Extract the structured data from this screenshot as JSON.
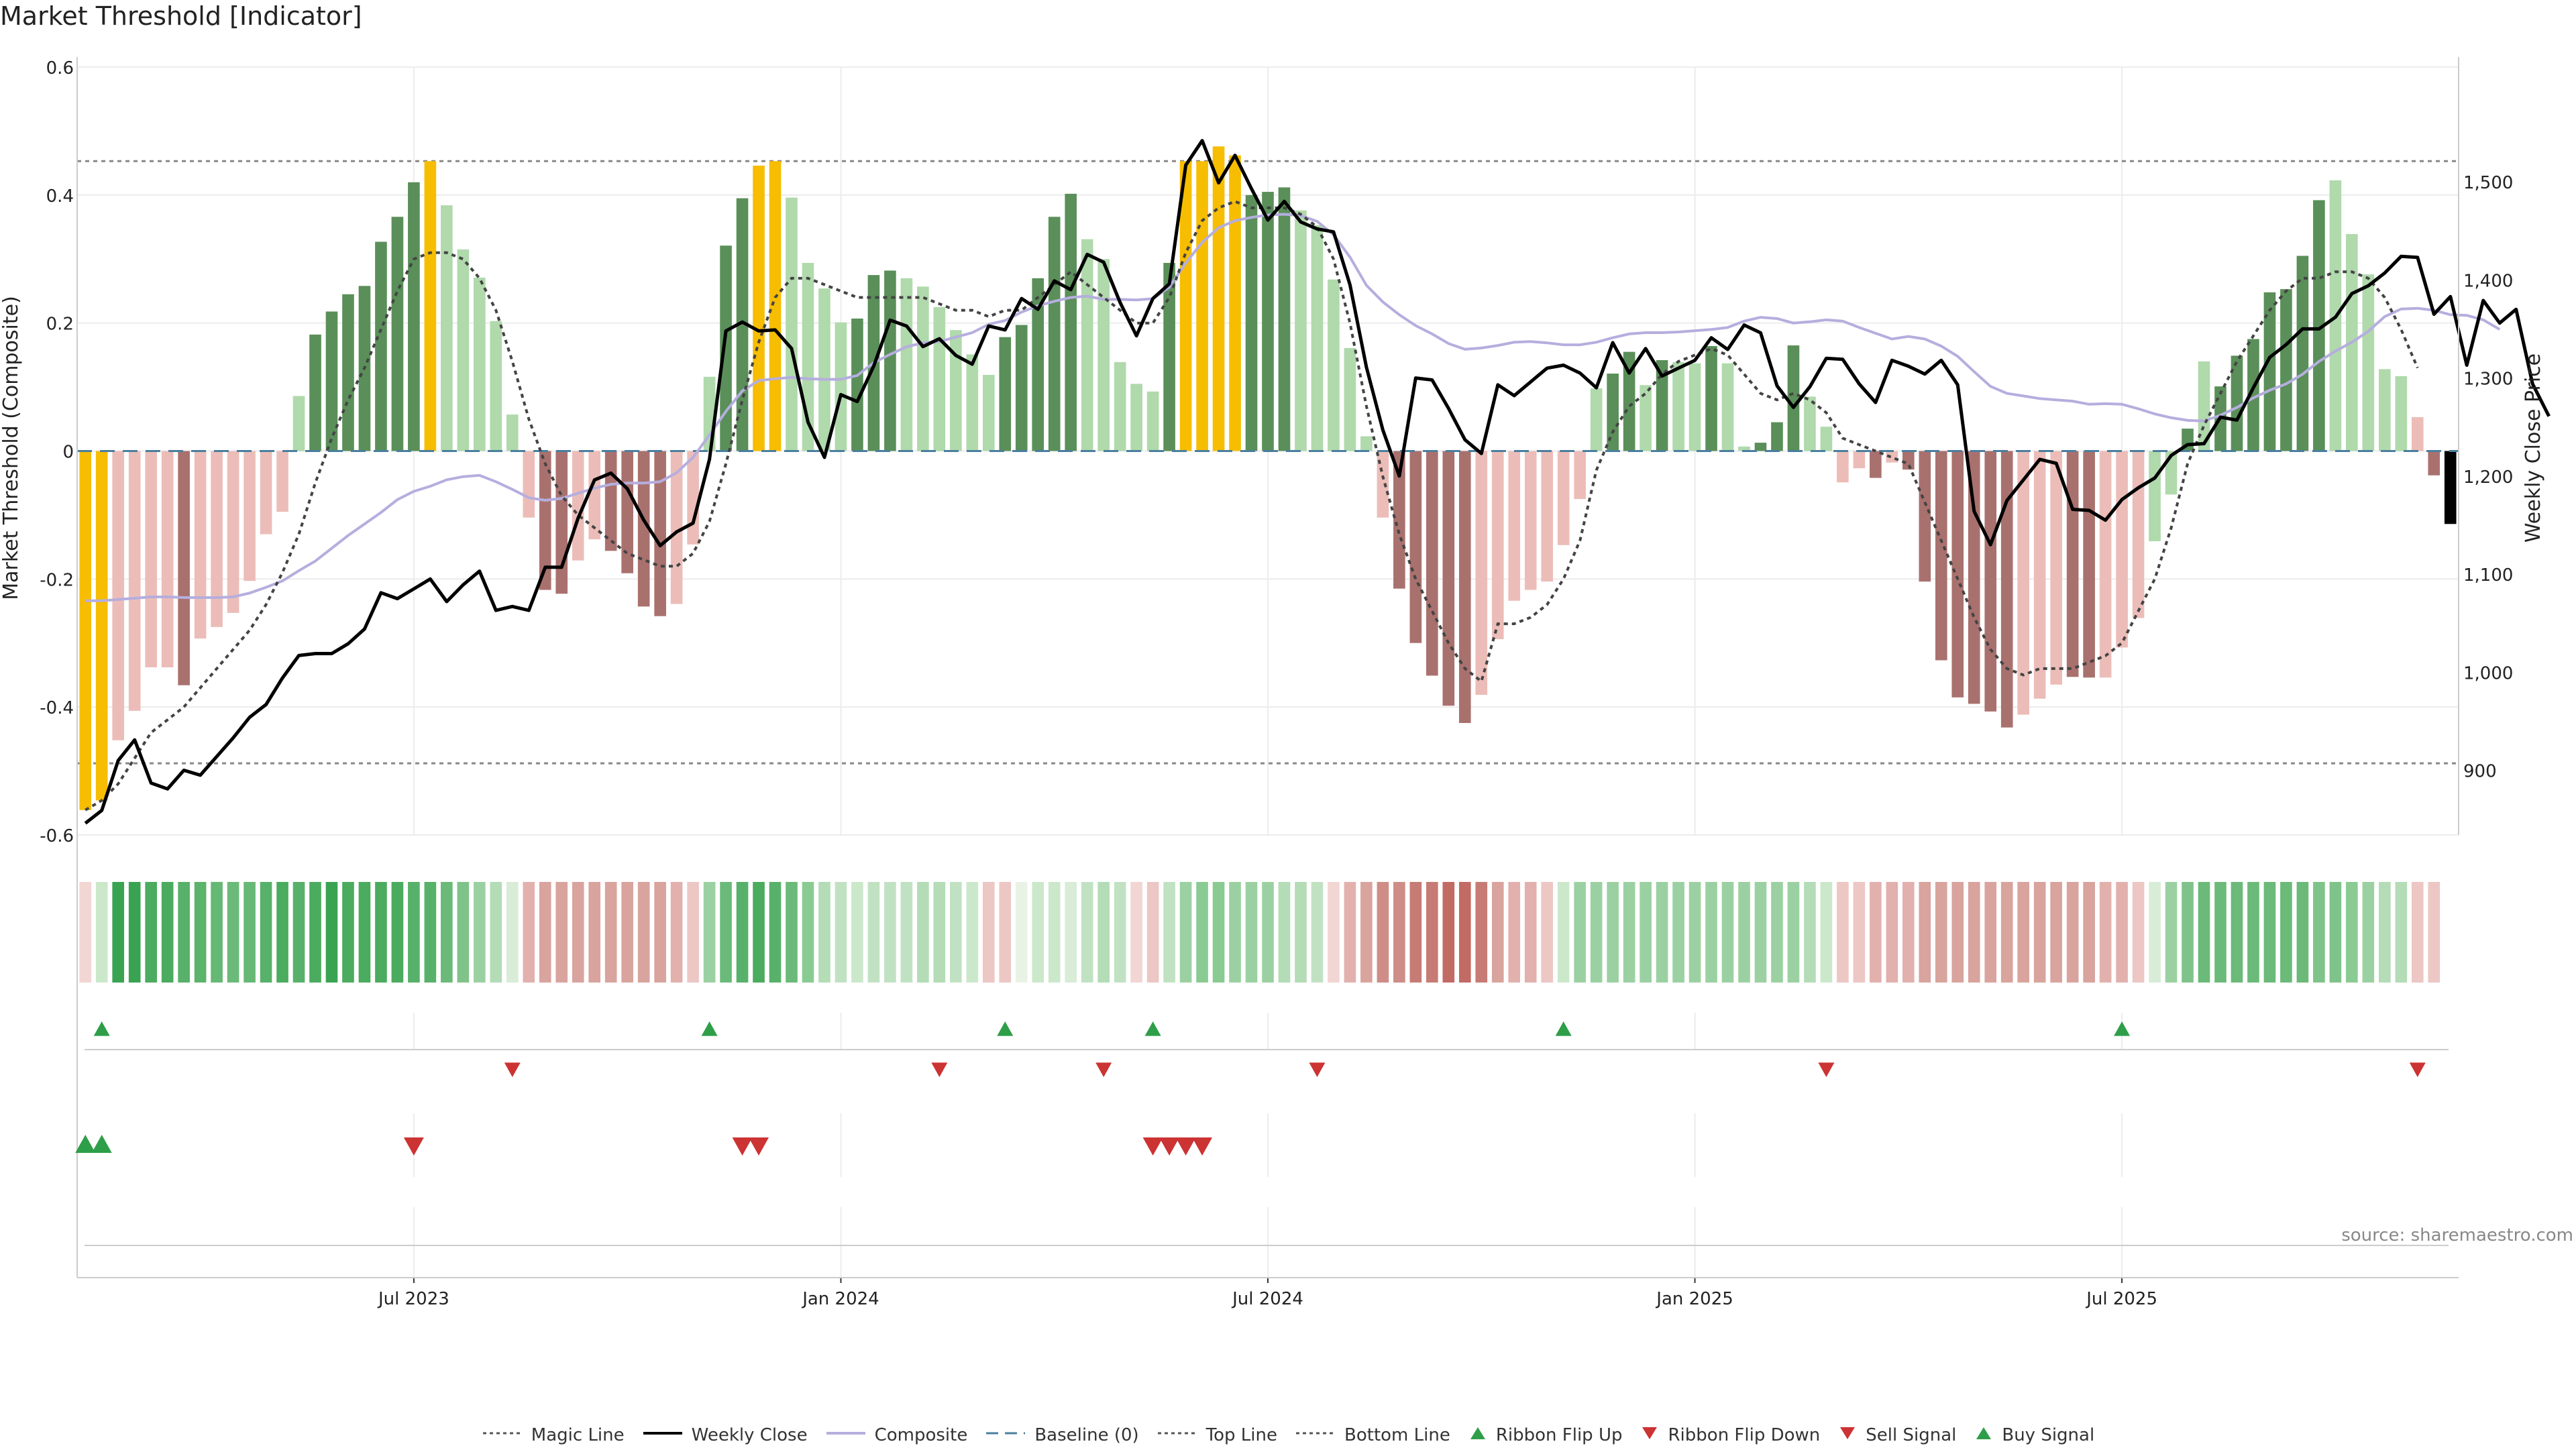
{
  "title": "Market Threshold [Indicator]",
  "source": "source: sharemaestro.com",
  "colors": {
    "gold": "#f7bd00",
    "dark_green": "#5a8f59",
    "light_green": "#b0d9ac",
    "dark_red": "#a9716e",
    "light_red": "#ecbdb8",
    "price": "#000000",
    "composite": "#b5aede",
    "magic": "#444444",
    "baseline": "#4a7f9e",
    "threshold": "#888888",
    "up": "#2e9e48",
    "down": "#cc3333"
  },
  "chart_data": {
    "type": "bar",
    "title": "Market Threshold [Indicator]",
    "ylabel": "Market Threshold (Composite)",
    "y2label": "Weekly Close Price",
    "ylim": [
      -0.6,
      0.6
    ],
    "y2lim": [
      834,
      1617
    ],
    "yticks": [
      "0.6",
      "0.4",
      "0.2",
      "0",
      "-0.2",
      "-0.4",
      "-0.6"
    ],
    "y2ticks": [
      "1,500",
      "1,400",
      "1,300",
      "1,200",
      "1,100",
      "1,000",
      "900"
    ],
    "xticks": [
      "Jul 2023",
      "Jan 2024",
      "Jul 2024",
      "Jan 2025",
      "Jul 2025"
    ],
    "xtick_index": [
      20,
      46,
      72,
      98,
      124
    ],
    "top_line": 0.453,
    "bottom_line": -0.488,
    "baseline": 0,
    "composite": [
      -0.561,
      -0.546,
      -0.452,
      -0.406,
      -0.338,
      -0.338,
      -0.366,
      -0.293,
      -0.275,
      -0.253,
      -0.203,
      -0.13,
      -0.095,
      0.086,
      0.182,
      0.218,
      0.245,
      0.258,
      0.327,
      0.366,
      0.42,
      0.453,
      0.384,
      0.315,
      0.271,
      0.203,
      0.057,
      -0.104,
      -0.217,
      -0.223,
      -0.171,
      -0.138,
      -0.156,
      -0.191,
      -0.243,
      -0.258,
      -0.239,
      -0.146,
      0.116,
      0.321,
      0.395,
      0.446,
      0.453,
      0.396,
      0.294,
      0.254,
      0.201,
      0.207,
      0.275,
      0.282,
      0.27,
      0.257,
      0.225,
      0.189,
      0.151,
      0.119,
      0.178,
      0.197,
      0.27,
      0.366,
      0.402,
      0.331,
      0.3,
      0.139,
      0.105,
      0.093,
      0.294,
      0.453,
      0.453,
      0.476,
      0.462,
      0.4,
      0.405,
      0.412,
      0.376,
      0.353,
      0.268,
      0.161,
      0.023,
      -0.104,
      -0.215,
      -0.3,
      -0.351,
      -0.398,
      -0.425,
      -0.381,
      -0.294,
      -0.234,
      -0.217,
      -0.204,
      -0.147,
      -0.075,
      0.098,
      0.121,
      0.155,
      0.103,
      0.142,
      0.139,
      0.137,
      0.164,
      0.137,
      0.007,
      0.013,
      0.045,
      0.165,
      0.085,
      0.038,
      -0.049,
      -0.027,
      -0.042,
      -0.018,
      -0.029,
      -0.204,
      -0.327,
      -0.385,
      -0.395,
      -0.407,
      -0.432,
      -0.412,
      -0.387,
      -0.365,
      -0.353,
      -0.354,
      -0.354,
      -0.307,
      -0.261,
      -0.141,
      -0.068,
      0.035,
      0.14,
      0.101,
      0.149,
      0.175,
      0.248,
      0.253,
      0.305,
      0.392,
      0.423,
      0.339,
      0.276,
      0.128,
      0.117,
      0.053,
      -0.038,
      -0.114
    ],
    "bar_colors": [
      "gold",
      "gold",
      "light_red",
      "light_red",
      "light_red",
      "light_red",
      "dark_red",
      "light_red",
      "light_red",
      "light_red",
      "light_red",
      "light_red",
      "light_red",
      "light_green",
      "dark_green",
      "dark_green",
      "dark_green",
      "dark_green",
      "dark_green",
      "dark_green",
      "dark_green",
      "gold",
      "light_green",
      "light_green",
      "light_green",
      "light_green",
      "light_green",
      "light_red",
      "dark_red",
      "dark_red",
      "light_red",
      "light_red",
      "dark_red",
      "dark_red",
      "dark_red",
      "dark_red",
      "light_red",
      "light_red",
      "light_green",
      "dark_green",
      "dark_green",
      "gold",
      "gold",
      "light_green",
      "light_green",
      "light_green",
      "light_green",
      "dark_green",
      "dark_green",
      "dark_green",
      "light_green",
      "light_green",
      "light_green",
      "light_green",
      "light_green",
      "light_green",
      "dark_green",
      "dark_green",
      "dark_green",
      "dark_green",
      "dark_green",
      "light_green",
      "light_green",
      "light_green",
      "light_green",
      "light_green",
      "dark_green",
      "gold",
      "gold",
      "gold",
      "gold",
      "dark_green",
      "dark_green",
      "dark_green",
      "light_green",
      "light_green",
      "light_green",
      "light_green",
      "light_green",
      "light_red",
      "dark_red",
      "dark_red",
      "dark_red",
      "dark_red",
      "dark_red",
      "light_red",
      "light_red",
      "light_red",
      "light_red",
      "light_red",
      "light_red",
      "light_red",
      "light_green",
      "dark_green",
      "dark_green",
      "light_green",
      "dark_green",
      "light_green",
      "light_green",
      "dark_green",
      "light_green",
      "light_green",
      "dark_green",
      "dark_green",
      "dark_green",
      "light_green",
      "light_green",
      "light_red",
      "light_red",
      "dark_red",
      "light_red",
      "dark_red",
      "dark_red",
      "dark_red",
      "dark_red",
      "dark_red",
      "dark_red",
      "dark_red",
      "light_red",
      "light_red",
      "light_red",
      "dark_red",
      "dark_red",
      "light_red",
      "light_red",
      "light_red",
      "light_green",
      "light_green",
      "dark_green",
      "light_green",
      "dark_green",
      "dark_green",
      "dark_green",
      "dark_green",
      "dark_green",
      "dark_green",
      "dark_green",
      "light_green",
      "light_green",
      "light_green",
      "light_green",
      "light_green",
      "light_red",
      "dark_red"
    ],
    "magic_line": [
      -0.561,
      -0.546,
      -0.52,
      -0.48,
      -0.44,
      -0.42,
      -0.4,
      -0.37,
      -0.34,
      -0.31,
      -0.28,
      -0.24,
      -0.19,
      -0.13,
      -0.05,
      0.02,
      0.08,
      0.13,
      0.19,
      0.25,
      0.3,
      0.31,
      0.31,
      0.3,
      0.27,
      0.22,
      0.14,
      0.05,
      -0.02,
      -0.07,
      -0.1,
      -0.12,
      -0.14,
      -0.16,
      -0.17,
      -0.18,
      -0.18,
      -0.16,
      -0.11,
      -0.02,
      0.08,
      0.17,
      0.24,
      0.27,
      0.27,
      0.26,
      0.25,
      0.24,
      0.24,
      0.24,
      0.24,
      0.24,
      0.23,
      0.22,
      0.22,
      0.21,
      0.22,
      0.22,
      0.24,
      0.26,
      0.28,
      0.26,
      0.24,
      0.22,
      0.2,
      0.2,
      0.24,
      0.31,
      0.36,
      0.38,
      0.39,
      0.38,
      0.38,
      0.38,
      0.37,
      0.35,
      0.3,
      0.2,
      0.07,
      -0.04,
      -0.13,
      -0.2,
      -0.25,
      -0.3,
      -0.34,
      -0.36,
      -0.27,
      -0.27,
      -0.26,
      -0.24,
      -0.2,
      -0.14,
      -0.03,
      0.03,
      0.07,
      0.09,
      0.12,
      0.14,
      0.15,
      0.16,
      0.15,
      0.12,
      0.09,
      0.08,
      0.09,
      0.08,
      0.06,
      0.02,
      0.01,
      0.0,
      -0.01,
      -0.02,
      -0.08,
      -0.14,
      -0.2,
      -0.26,
      -0.31,
      -0.34,
      -0.35,
      -0.34,
      -0.34,
      -0.34,
      -0.33,
      -0.32,
      -0.3,
      -0.25,
      -0.2,
      -0.12,
      -0.02,
      0.04,
      0.09,
      0.14,
      0.18,
      0.22,
      0.25,
      0.27,
      0.27,
      0.28,
      0.28,
      0.27,
      0.24,
      0.19,
      0.13
    ],
    "composite_line": [
      -0.234,
      -0.234,
      -0.232,
      -0.23,
      -0.228,
      -0.228,
      -0.229,
      -0.229,
      -0.229,
      -0.228,
      -0.222,
      -0.213,
      -0.203,
      -0.187,
      -0.172,
      -0.152,
      -0.132,
      -0.114,
      -0.096,
      -0.076,
      -0.063,
      -0.055,
      -0.045,
      -0.04,
      -0.038,
      -0.048,
      -0.06,
      -0.073,
      -0.077,
      -0.074,
      -0.066,
      -0.058,
      -0.052,
      -0.05,
      -0.05,
      -0.048,
      -0.034,
      -0.01,
      0.025,
      0.062,
      0.094,
      0.11,
      0.113,
      0.115,
      0.113,
      0.112,
      0.112,
      0.118,
      0.138,
      0.151,
      0.163,
      0.169,
      0.171,
      0.178,
      0.185,
      0.198,
      0.204,
      0.217,
      0.227,
      0.234,
      0.24,
      0.242,
      0.237,
      0.237,
      0.236,
      0.238,
      0.256,
      0.294,
      0.326,
      0.349,
      0.36,
      0.365,
      0.369,
      0.37,
      0.368,
      0.359,
      0.338,
      0.303,
      0.259,
      0.233,
      0.213,
      0.196,
      0.183,
      0.168,
      0.159,
      0.161,
      0.165,
      0.17,
      0.171,
      0.169,
      0.166,
      0.166,
      0.17,
      0.177,
      0.183,
      0.185,
      0.185,
      0.186,
      0.188,
      0.19,
      0.193,
      0.203,
      0.209,
      0.207,
      0.2,
      0.202,
      0.205,
      0.203,
      0.193,
      0.184,
      0.175,
      0.179,
      0.175,
      0.164,
      0.148,
      0.124,
      0.101,
      0.09,
      0.086,
      0.082,
      0.08,
      0.078,
      0.073,
      0.074,
      0.073,
      0.066,
      0.058,
      0.052,
      0.048,
      0.047,
      0.056,
      0.068,
      0.083,
      0.095,
      0.105,
      0.12,
      0.14,
      0.156,
      0.17,
      0.187,
      0.21,
      0.222,
      0.223,
      0.22,
      0.213,
      0.212,
      0.205,
      0.19
    ],
    "weekly_close": [
      846,
      859,
      910,
      931,
      887,
      881,
      900,
      895,
      914,
      933,
      954,
      967,
      994,
      1017,
      1019,
      1019,
      1029,
      1044,
      1081,
      1075,
      1085,
      1095,
      1072,
      1089,
      1103,
      1063,
      1067,
      1063,
      1107,
      1107,
      1157,
      1196,
      1203,
      1187,
      1155,
      1129,
      1143,
      1152,
      1217,
      1348,
      1357,
      1348,
      1349,
      1330,
      1255,
      1219,
      1283,
      1276,
      1312,
      1359,
      1353,
      1332,
      1340,
      1323,
      1314,
      1353,
      1349,
      1381,
      1370,
      1399,
      1390,
      1426,
      1418,
      1377,
      1343,
      1381,
      1396,
      1517,
      1542,
      1499,
      1527,
      1493,
      1461,
      1480,
      1459,
      1452,
      1449,
      1395,
      1311,
      1247,
      1200,
      1300,
      1298,
      1269,
      1237,
      1223,
      1293,
      1282,
      1296,
      1310,
      1313,
      1305,
      1290,
      1336,
      1305,
      1330,
      1302,
      1310,
      1318,
      1341,
      1329,
      1354,
      1346,
      1292,
      1270,
      1291,
      1320,
      1319,
      1294,
      1275,
      1318,
      1312,
      1304,
      1318,
      1293,
      1164,
      1130,
      1175,
      1196,
      1217,
      1213,
      1166,
      1165,
      1155,
      1176,
      1188,
      1198,
      1221,
      1232,
      1233,
      1260,
      1257,
      1290,
      1321,
      1334,
      1350,
      1350,
      1362,
      1386,
      1394,
      1407,
      1424,
      1423,
      1365,
      1383,
      1313,
      1379,
      1356,
      1370,
      1294,
      1261
    ],
    "strip_colors": [
      "#f2d6d4",
      "#cce8cb",
      "#3aa352",
      "#3aa352",
      "#4bab5e",
      "#4bab5e",
      "#58b16a",
      "#5bb36c",
      "#66b875",
      "#6bba79",
      "#66b875",
      "#58b16a",
      "#4bab5e",
      "#58b16a",
      "#4bab5e",
      "#3aa352",
      "#4bab5e",
      "#4bab5e",
      "#4bab5e",
      "#4bab5e",
      "#58b16a",
      "#58b16a",
      "#6bba79",
      "#7fc38a",
      "#9bd1a2",
      "#b3dcb7",
      "#d8ecd7",
      "#e2b1ad",
      "#d9a39e",
      "#d9a39e",
      "#d9a39e",
      "#d9a39e",
      "#d9a39e",
      "#d9a39e",
      "#d9a39e",
      "#d9a39e",
      "#e2b1ad",
      "#ecc7c4",
      "#9bd1a2",
      "#6bba79",
      "#58b16a",
      "#4bab5e",
      "#58b16a",
      "#6bba79",
      "#8acb93",
      "#b3dcb7",
      "#c1e2c2",
      "#cce8cb",
      "#c1e2c2",
      "#c1e2c2",
      "#c1e2c2",
      "#b3dcb7",
      "#b3dcb7",
      "#c1e2c2",
      "#cce8cb",
      "#ecc7c4",
      "#ecc7c4",
      "#e8f3e6",
      "#cce8cb",
      "#cce8cb",
      "#d8ecd7",
      "#c1e2c2",
      "#b3dcb7",
      "#c1e2c2",
      "#f2d6d4",
      "#ecc7c4",
      "#c1e2c2",
      "#9bd1a2",
      "#8acb93",
      "#8acb93",
      "#9bd1a2",
      "#9bd1a2",
      "#9bd1a2",
      "#b3dcb7",
      "#b3dcb7",
      "#c1e2c2",
      "#f2d6d4",
      "#e2b1ad",
      "#d9a39e",
      "#cf8d87",
      "#cf8d87",
      "#c77b75",
      "#c77b75",
      "#c26a64",
      "#c26a64",
      "#c77b75",
      "#d9a39e",
      "#e2b1ad",
      "#e2b1ad",
      "#ecc7c4",
      "#cce8cb",
      "#9bd1a2",
      "#9bd1a2",
      "#9bd1a2",
      "#9bd1a2",
      "#9bd1a2",
      "#9bd1a2",
      "#9bd1a2",
      "#9bd1a2",
      "#9bd1a2",
      "#9bd1a2",
      "#9bd1a2",
      "#9bd1a2",
      "#9bd1a2",
      "#9bd1a2",
      "#b3dcb7",
      "#cce8cb",
      "#ecc7c4",
      "#ecc7c4",
      "#e2b1ad",
      "#e2b1ad",
      "#e2b1ad",
      "#d9a39e",
      "#d9a39e",
      "#d9a39e",
      "#d9a39e",
      "#d9a39e",
      "#d9a39e",
      "#d9a39e",
      "#d9a39e",
      "#d9a39e",
      "#d9a39e",
      "#d9a39e",
      "#e2b1ad",
      "#e2b1ad",
      "#ecc7c4",
      "#d8ecd7",
      "#9bd1a2",
      "#7fc38a",
      "#6bba79",
      "#6bba79",
      "#6bba79",
      "#6bba79",
      "#6bba79",
      "#6bba79",
      "#6bba79",
      "#7fc38a",
      "#7fc38a",
      "#8acb93",
      "#9bd1a2",
      "#b3dcb7",
      "#b3dcb7",
      "#ecc7c4",
      "#ecc7c4"
    ],
    "ribbon_flip_up": [
      1,
      38,
      56,
      65,
      90,
      124
    ],
    "ribbon_flip_down": [
      26,
      52,
      62,
      75,
      106,
      142
    ],
    "buy_signal": [
      0,
      1
    ],
    "sell_signal": [
      20,
      40,
      41,
      65,
      66,
      67,
      68
    ]
  },
  "legend": [
    {
      "label": "Magic Line",
      "icon": "dotted-line"
    },
    {
      "label": "Weekly Close",
      "icon": "solid-line"
    },
    {
      "label": "Composite",
      "icon": "lavender-line"
    },
    {
      "label": "Baseline (0)",
      "icon": "dashed-line"
    },
    {
      "label": "Top Line",
      "icon": "dotted-line"
    },
    {
      "label": "Bottom Line",
      "icon": "dotted-line"
    },
    {
      "label": "Ribbon Flip Up",
      "icon": "triangle-up"
    },
    {
      "label": "Ribbon Flip Down",
      "icon": "triangle-down"
    },
    {
      "label": "Sell Signal",
      "icon": "triangle-down"
    },
    {
      "label": "Buy Signal",
      "icon": "triangle-up"
    }
  ]
}
